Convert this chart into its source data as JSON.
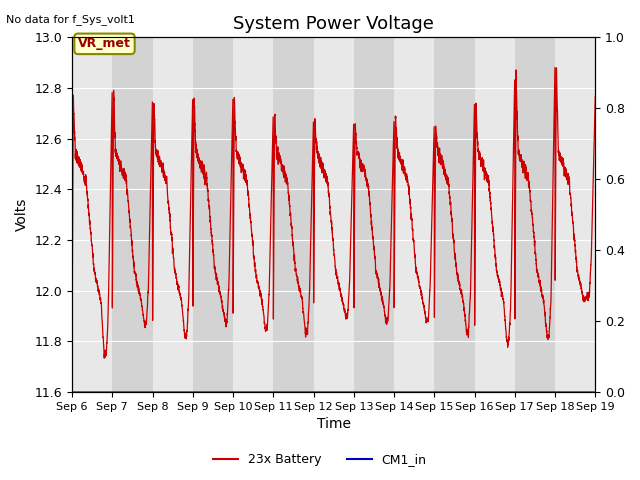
{
  "title": "System Power Voltage",
  "ylabel_left": "Volts",
  "xlabel": "Time",
  "top_left_text": "No data for f_Sys_volt1",
  "annotation_text": "VR_met",
  "ylim_left": [
    11.6,
    13.0
  ],
  "ylim_right": [
    0.0,
    1.0
  ],
  "yticks_left": [
    11.6,
    11.8,
    12.0,
    12.2,
    12.4,
    12.6,
    12.8,
    13.0
  ],
  "yticks_right": [
    0.0,
    0.2,
    0.4,
    0.6,
    0.8,
    1.0
  ],
  "xtick_labels": [
    "Sep 6",
    "Sep 7",
    "Sep 8",
    "Sep 9",
    "Sep 10",
    "Sep 11",
    "Sep 12",
    "Sep 13",
    "Sep 14",
    "Sep 15",
    "Sep 16",
    "Sep 17",
    "Sep 18",
    "Sep 19"
  ],
  "legend_labels": [
    "23x Battery",
    "CM1_in"
  ],
  "legend_colors": [
    "#cc0000",
    "#0000bb"
  ],
  "background_color": "#ffffff",
  "plot_bg_color": "#e8e8e8",
  "band_color_light": "#e8e8e8",
  "band_color_dark": "#d3d3d3",
  "title_fontsize": 13,
  "axis_fontsize": 10,
  "tick_fontsize": 9,
  "line_color_battery": "#cc0000",
  "line_color_cm1": "#0000bb",
  "n_days": 13,
  "peak_vals": [
    12.77,
    12.8,
    12.76,
    12.77,
    12.77,
    12.7,
    12.68,
    12.67,
    12.68,
    12.66,
    12.75,
    12.85,
    12.9
  ],
  "min_vals": [
    11.75,
    11.87,
    11.82,
    11.88,
    11.85,
    11.83,
    11.9,
    11.88,
    11.88,
    11.84,
    11.8,
    11.82,
    11.98
  ]
}
